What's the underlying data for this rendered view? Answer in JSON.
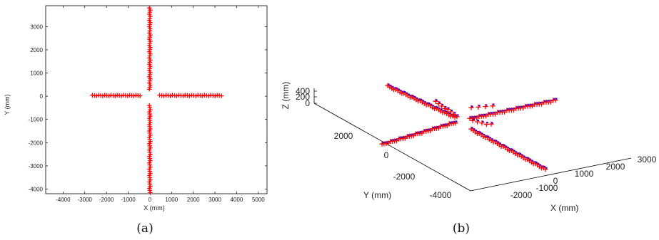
{
  "chart_data": [
    {
      "type": "scatter",
      "caption": "(a)",
      "xlabel": "X (mm)",
      "ylabel": "Y (mm)",
      "xlim": [
        -4800,
        5400
      ],
      "ylim": [
        -4200,
        3900
      ],
      "xticks": [
        -4000,
        -3000,
        -2000,
        -1000,
        0,
        1000,
        2000,
        3000,
        4000,
        5000
      ],
      "yticks": [
        -4000,
        -3000,
        -2000,
        -1000,
        0,
        1000,
        2000,
        3000
      ],
      "grid": false,
      "colors": {
        "measured": "#ff0000",
        "reference": "#0000ff"
      },
      "arms": [
        {
          "name": "left",
          "from": [
            -2650,
            30
          ],
          "to": [
            -450,
            30
          ],
          "count": 24
        },
        {
          "name": "right",
          "from": [
            450,
            30
          ],
          "to": [
            3300,
            30
          ],
          "count": 30
        },
        {
          "name": "up",
          "from": [
            0,
            300
          ],
          "to": [
            0,
            3800
          ],
          "count": 40
        },
        {
          "name": "down",
          "from": [
            0,
            -400
          ],
          "to": [
            0,
            -4150
          ],
          "count": 42
        }
      ]
    },
    {
      "type": "scatter",
      "caption": "(b)",
      "xlabel": "X (mm)",
      "ylabel": "Y (mm)",
      "zlabel": "Z (mm)",
      "xticks": [
        -2000,
        -1000,
        0,
        1000,
        2000,
        3000
      ],
      "yticks": [
        -4000,
        -2000,
        0,
        2000
      ],
      "zticks": [
        0,
        200,
        400
      ],
      "grid": false,
      "colors": {
        "measured": "#ff0000",
        "reference": "#0000ff"
      }
    }
  ]
}
